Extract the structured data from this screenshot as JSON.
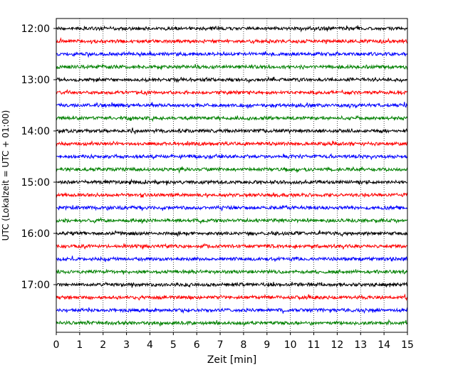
{
  "chart_data": {
    "type": "line",
    "subtype": "helicorder",
    "xlabel": "Zeit  [min]",
    "ylabel": "UTC (Lokalzeit = UTC + 01:00)",
    "xlim": [
      0,
      15
    ],
    "x_ticks": [
      0,
      1,
      2,
      3,
      4,
      5,
      6,
      7,
      8,
      9,
      10,
      11,
      12,
      13,
      14,
      15
    ],
    "x_tick_labels": [
      "0",
      "1",
      "2",
      "3",
      "4",
      "5",
      "6",
      "7",
      "8",
      "9",
      "10",
      "11",
      "12",
      "13",
      "14",
      "15"
    ],
    "y_hour_labels": [
      "12:00",
      "13:00",
      "14:00",
      "15:00",
      "16:00",
      "17:00"
    ],
    "traces_per_hour": 4,
    "trace_minutes": 15,
    "trace_color_cycle": [
      "#000000",
      "#ff0000",
      "#0000ff",
      "#008000"
    ],
    "traces": [
      {
        "start": "12:00",
        "color": "#000000"
      },
      {
        "start": "12:15",
        "color": "#ff0000"
      },
      {
        "start": "12:30",
        "color": "#0000ff"
      },
      {
        "start": "12:45",
        "color": "#008000"
      },
      {
        "start": "13:00",
        "color": "#000000"
      },
      {
        "start": "13:15",
        "color": "#ff0000"
      },
      {
        "start": "13:30",
        "color": "#0000ff"
      },
      {
        "start": "13:45",
        "color": "#008000"
      },
      {
        "start": "14:00",
        "color": "#000000"
      },
      {
        "start": "14:15",
        "color": "#ff0000"
      },
      {
        "start": "14:30",
        "color": "#0000ff"
      },
      {
        "start": "14:45",
        "color": "#008000"
      },
      {
        "start": "15:00",
        "color": "#000000"
      },
      {
        "start": "15:15",
        "color": "#ff0000"
      },
      {
        "start": "15:30",
        "color": "#0000ff"
      },
      {
        "start": "15:45",
        "color": "#008000"
      },
      {
        "start": "16:00",
        "color": "#000000"
      },
      {
        "start": "16:15",
        "color": "#ff0000"
      },
      {
        "start": "16:30",
        "color": "#0000ff"
      },
      {
        "start": "16:45",
        "color": "#008000"
      },
      {
        "start": "17:00",
        "color": "#000000"
      },
      {
        "start": "17:15",
        "color": "#ff0000"
      },
      {
        "start": "17:30",
        "color": "#0000ff"
      },
      {
        "start": "17:45",
        "color": "#008000"
      }
    ],
    "grid": {
      "x": true,
      "y": false,
      "style": "dotted"
    },
    "legend": "none"
  }
}
